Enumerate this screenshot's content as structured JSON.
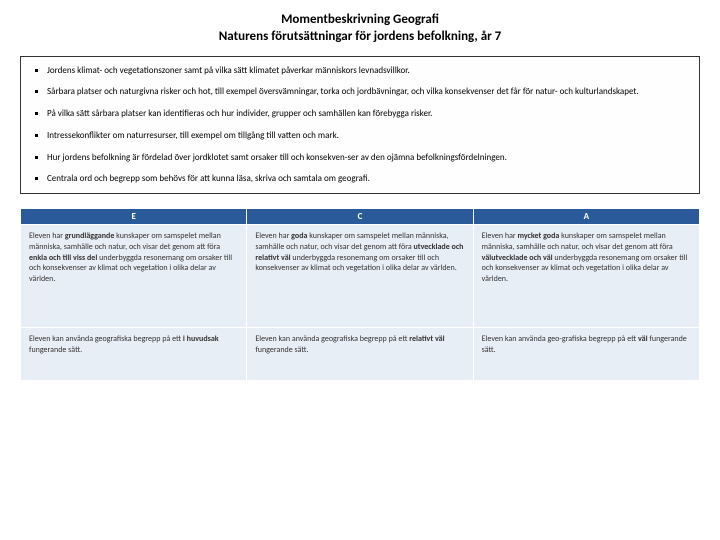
{
  "title": {
    "line1": "Momentbeskrivning Geografi",
    "line2": "Naturens förutsättningar för jordens befolkning, år 7"
  },
  "bullets": [
    "Jordens klimat- och vegetationszoner samt på vilka sätt klimatet påverkar människors levnadsvillkor.",
    "Sårbara platser och naturgivna risker och hot, till exempel översvämningar, torka och jordbävningar, och vilka konsekvenser det får för natur- och kulturlandskapet.",
    "På vilka sätt sårbara platser kan identifieras och hur individer, grupper och samhällen kan förebygga risker.",
    "Intressekonflikter om naturresurser, till exempel om tillgång till vatten och mark.",
    "Hur jordens befolkning är fördelad över jordklotet samt orsaker till och konsekven-ser av den ojämna befolkningsfördelningen.",
    "Centrala ord och begrepp som behövs för att kunna läsa, skriva och samtala om geografi."
  ],
  "grades": {
    "headers": {
      "e": "E",
      "c": "C",
      "a": "A"
    },
    "row1": {
      "e": {
        "pre": "Eleven har ",
        "b1": "grundläggande",
        "mid": " kunskaper om samspelet mellan människa, samhälle och natur, och visar det genom att föra ",
        "b2": "enkla och till viss del",
        "post": " underbyggda resonemang om orsaker till och konsekvenser av klimat och vegetation i olika delar av världen."
      },
      "c": {
        "pre": "Eleven har ",
        "b1": "goda",
        "mid": " kunskaper om samspelet mellan människa, samhälle och natur, och visar det genom att föra ",
        "b2": "utvecklade och relativt väl",
        "post": " underbyggda resonemang om orsaker till och konsekvenser av klimat och vegetation i olika delar av världen."
      },
      "a": {
        "pre": "Eleven har ",
        "b1": "mycket goda",
        "mid": " kunskaper om samspelet mellan människa, samhälle och natur, och visar det genom att föra ",
        "b2": "välutvecklade och väl",
        "post": " underbyggda resonemang om orsaker till och konsekvenser av klimat och vegetation i olika delar av världen."
      }
    },
    "row2": {
      "e": {
        "pre": "Eleven kan använda geografiska begrepp på ett ",
        "b1": "i huvudsak",
        "post": " fungerande sätt."
      },
      "c": {
        "pre": "Eleven kan använda geografiska begrepp på ett ",
        "b1": "relativt väl",
        "post": " fungerande sätt."
      },
      "a": {
        "pre": "Eleven kan använda geo-grafiska begrepp på ett ",
        "b1": "väl",
        "post": " fungerande sätt."
      }
    }
  },
  "colors": {
    "header_bg": "#2a5a9a",
    "header_fg": "#ffffff",
    "cell_bg": "#e8eef6",
    "border": "#ffffff"
  }
}
